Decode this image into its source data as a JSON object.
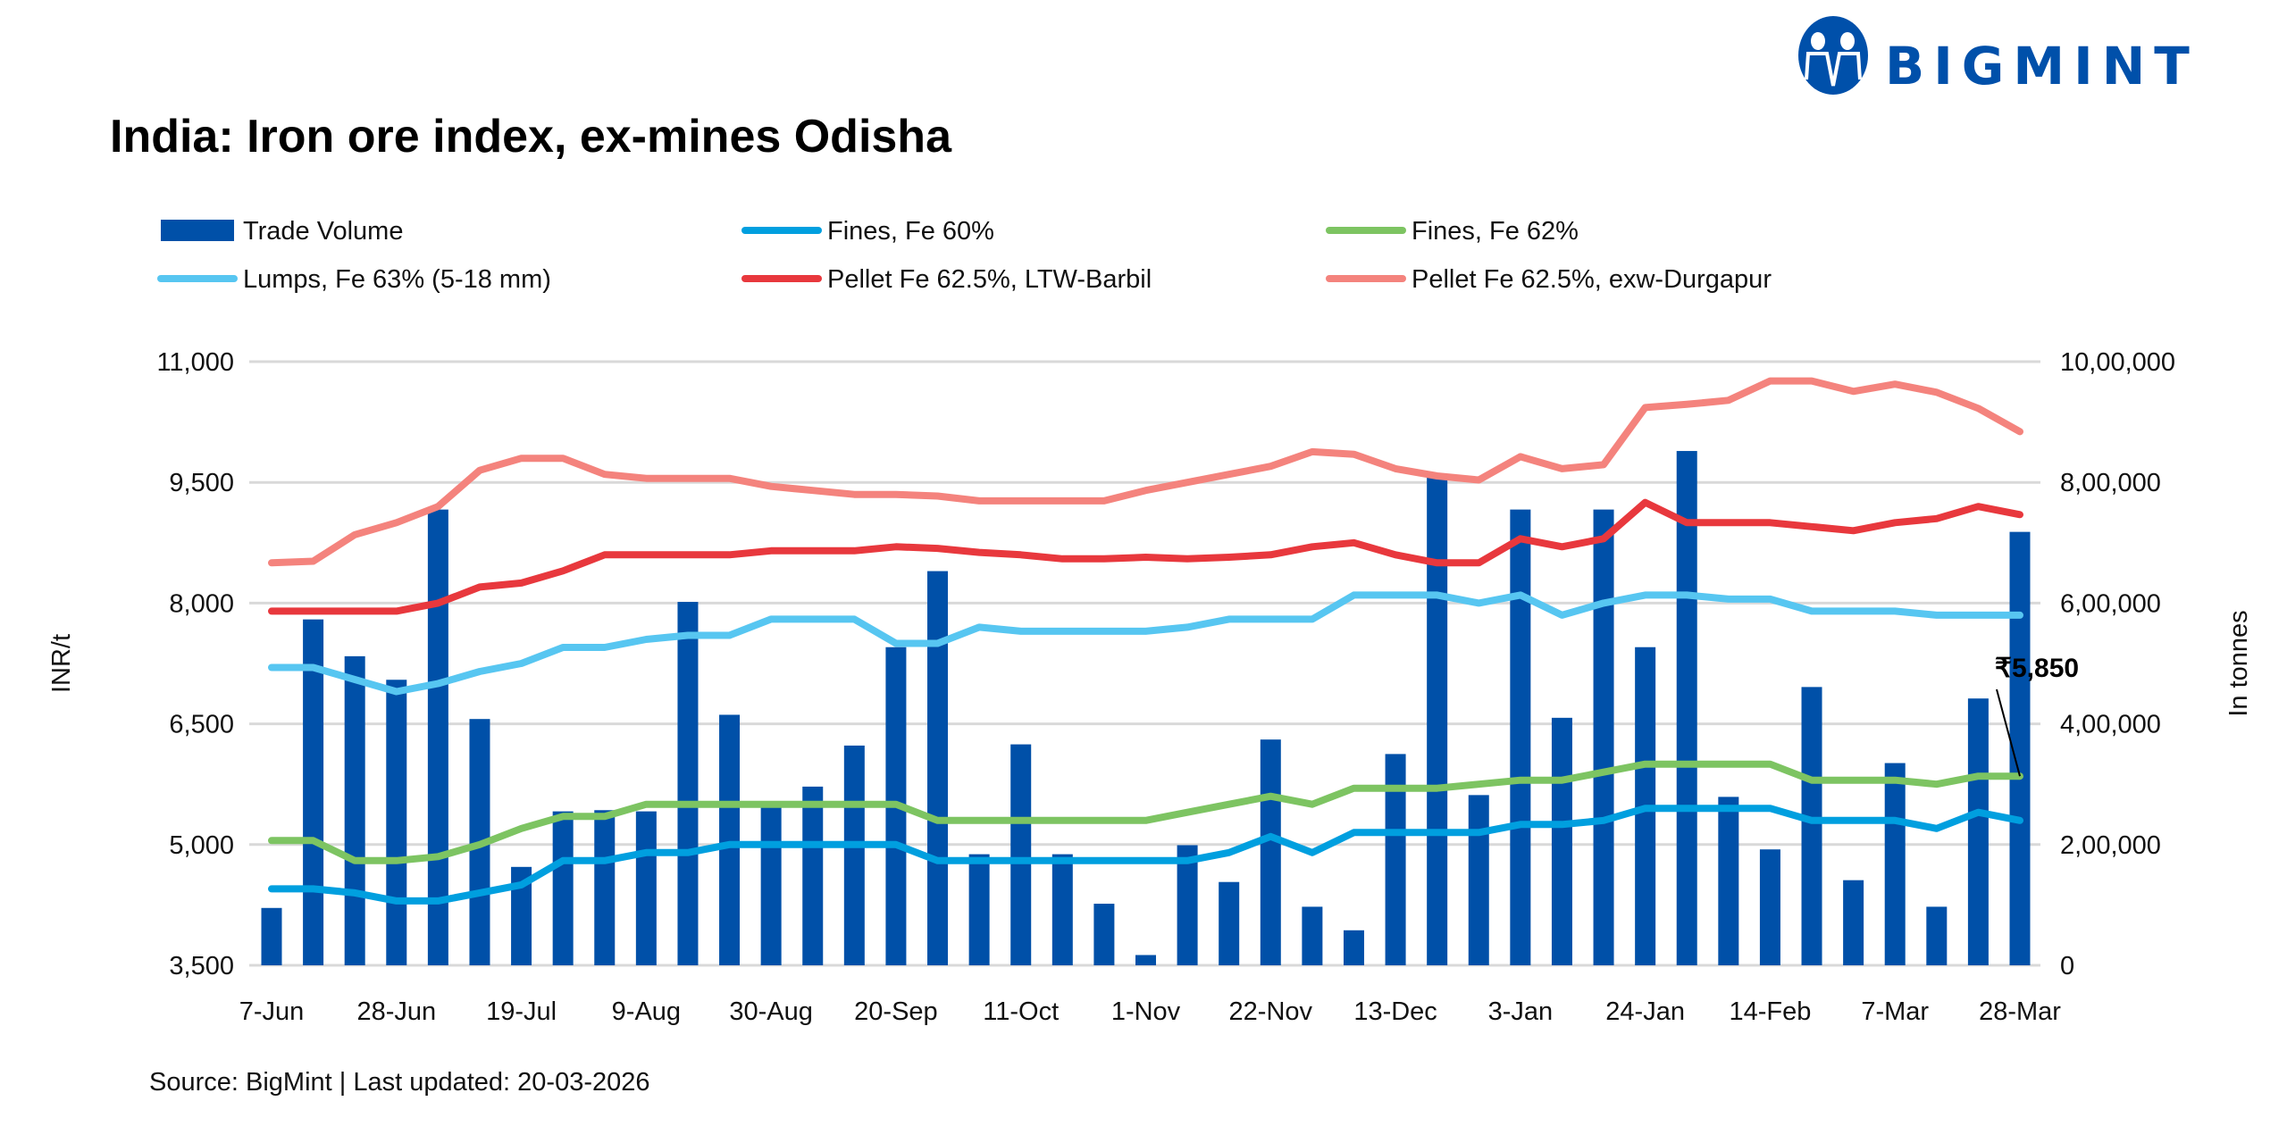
{
  "logo": {
    "text": "BIGMINT",
    "color": "#0050aa"
  },
  "chart_data": {
    "type": "bar+line",
    "title": "India: Iron ore index, ex-mines Odisha",
    "ylabel": "INR/t",
    "y2label": "In tonnes",
    "ylim": [
      3500,
      11000
    ],
    "yticks": [
      3500,
      5000,
      6500,
      8000,
      9500,
      11000
    ],
    "ytick_labels": [
      "3,500",
      "5,000",
      "6,500",
      "8,000",
      "9,500",
      "11,000"
    ],
    "y2lim": [
      0,
      1000000
    ],
    "y2ticks": [
      0,
      200000,
      400000,
      600000,
      800000,
      1000000
    ],
    "y2tick_labels": [
      "0",
      "2,00,000",
      "4,00,000",
      "6,00,000",
      "8,00,000",
      "10,00,000"
    ],
    "grid": true,
    "legend_placement": "top",
    "categories": [
      "7-Jun",
      "14-Jun",
      "21-Jun",
      "28-Jun",
      "5-Jul",
      "12-Jul",
      "19-Jul",
      "26-Jul",
      "2-Aug",
      "9-Aug",
      "16-Aug",
      "23-Aug",
      "30-Aug",
      "6-Sep",
      "13-Sep",
      "20-Sep",
      "27-Sep",
      "4-Oct",
      "11-Oct",
      "18-Oct",
      "25-Oct",
      "1-Nov",
      "8-Nov",
      "15-Nov",
      "22-Nov",
      "29-Nov",
      "6-Dec",
      "13-Dec",
      "20-Dec",
      "27-Dec",
      "3-Jan",
      "10-Jan",
      "17-Jan",
      "24-Jan",
      "31-Jan",
      "7-Feb",
      "14-Feb",
      "21-Feb",
      "28-Feb",
      "7-Mar",
      "14-Mar",
      "21-Mar",
      "28-Mar"
    ],
    "xtick_labels": [
      "7-Jun",
      "28-Jun",
      "19-Jul",
      "9-Aug",
      "30-Aug",
      "20-Sep",
      "11-Oct",
      "1-Nov",
      "22-Nov",
      "13-Dec",
      "3-Jan",
      "24-Jan",
      "14-Feb",
      "7-Mar",
      "28-Mar"
    ],
    "bars": {
      "name": "Trade Volume",
      "axis": "right",
      "color": "#0050a8",
      "values": [
        95000,
        573000,
        512000,
        473000,
        755000,
        408000,
        163000,
        255000,
        257000,
        255000,
        602000,
        415000,
        265000,
        296000,
        364000,
        527000,
        653000,
        184000,
        366000,
        184000,
        102000,
        17000,
        199000,
        138000,
        374000,
        97000,
        58000,
        350000,
        811000,
        282000,
        755000,
        410000,
        755000,
        527000,
        852000,
        279000,
        192000,
        461000,
        141000,
        335000,
        97000,
        442000,
        718000
      ]
    },
    "series": [
      {
        "name": "Fines, Fe 60%",
        "color": "#009fdf",
        "values": [
          4450,
          4450,
          4400,
          4300,
          4300,
          4400,
          4500,
          4800,
          4800,
          4900,
          4900,
          5000,
          5000,
          5000,
          5000,
          5000,
          4800,
          4800,
          4800,
          4800,
          4800,
          4800,
          4800,
          4900,
          5100,
          4900,
          5150,
          5150,
          5150,
          5150,
          5250,
          5250,
          5300,
          5450,
          5450,
          5450,
          5450,
          5300,
          5300,
          5300,
          5200,
          5400,
          5300
        ]
      },
      {
        "name": "Fines, Fe 62%",
        "color": "#7dc462",
        "values": [
          5050,
          5050,
          4800,
          4800,
          4850,
          5000,
          5200,
          5350,
          5350,
          5500,
          5500,
          5500,
          5500,
          5500,
          5500,
          5500,
          5300,
          5300,
          5300,
          5300,
          5300,
          5300,
          5400,
          5500,
          5600,
          5500,
          5700,
          5700,
          5700,
          5750,
          5800,
          5800,
          5900,
          6000,
          6000,
          6000,
          6000,
          5800,
          5800,
          5800,
          5750,
          5850,
          5850
        ]
      },
      {
        "name": "Lumps, Fe 63% (5-18 mm)",
        "color": "#57c6f1",
        "values": [
          7200,
          7200,
          7050,
          6900,
          7000,
          7150,
          7250,
          7450,
          7450,
          7550,
          7600,
          7600,
          7800,
          7800,
          7800,
          7500,
          7500,
          7700,
          7650,
          7650,
          7650,
          7650,
          7700,
          7800,
          7800,
          7800,
          8100,
          8100,
          8100,
          8000,
          8100,
          7850,
          8000,
          8100,
          8100,
          8050,
          8050,
          7900,
          7900,
          7900,
          7850,
          7850,
          7850
        ]
      },
      {
        "name": "Pellet Fe 62.5%, LTW-Barbil",
        "color": "#e8383d",
        "values": [
          7900,
          7900,
          7900,
          7900,
          8000,
          8200,
          8250,
          8400,
          8600,
          8600,
          8600,
          8600,
          8650,
          8650,
          8650,
          8700,
          8680,
          8630,
          8600,
          8550,
          8550,
          8570,
          8550,
          8570,
          8600,
          8700,
          8750,
          8600,
          8500,
          8500,
          8800,
          8700,
          8800,
          9250,
          9000,
          9000,
          9000,
          8950,
          8900,
          9000,
          9050,
          9200,
          9100
        ]
      },
      {
        "name": "Pellet Fe  62.5%, exw-Durgapur",
        "color": "#f4837d",
        "values": [
          8500,
          8520,
          8850,
          9000,
          9200,
          9650,
          9800,
          9800,
          9600,
          9550,
          9550,
          9550,
          9450,
          9400,
          9350,
          9350,
          9330,
          9270,
          9270,
          9270,
          9270,
          9400,
          9500,
          9600,
          9700,
          9880,
          9850,
          9670,
          9580,
          9530,
          9820,
          9670,
          9720,
          10430,
          10470,
          10520,
          10760,
          10760,
          10630,
          10720,
          10620,
          10420,
          10130
        ]
      }
    ],
    "annotation": {
      "text": "₹5,850",
      "series": "Fines, Fe 62%",
      "category": "28-Mar",
      "value": 5850
    }
  },
  "legend": [
    {
      "label": "Trade Volume",
      "kind": "bar",
      "color": "#0050a8"
    },
    {
      "label": "Fines, Fe 60%",
      "kind": "line",
      "color": "#009fdf"
    },
    {
      "label": "Fines, Fe 62%",
      "kind": "line",
      "color": "#7dc462"
    },
    {
      "label": "Lumps, Fe 63% (5-18 mm)",
      "kind": "line",
      "color": "#57c6f1"
    },
    {
      "label": "Pellet Fe 62.5%, LTW-Barbil",
      "kind": "line",
      "color": "#e8383d"
    },
    {
      "label": "Pellet Fe  62.5%, exw-Durgapur",
      "kind": "line",
      "color": "#f4837d"
    }
  ],
  "footer": {
    "source": "Source: BigMint | Last updated: 20-03-2026"
  }
}
